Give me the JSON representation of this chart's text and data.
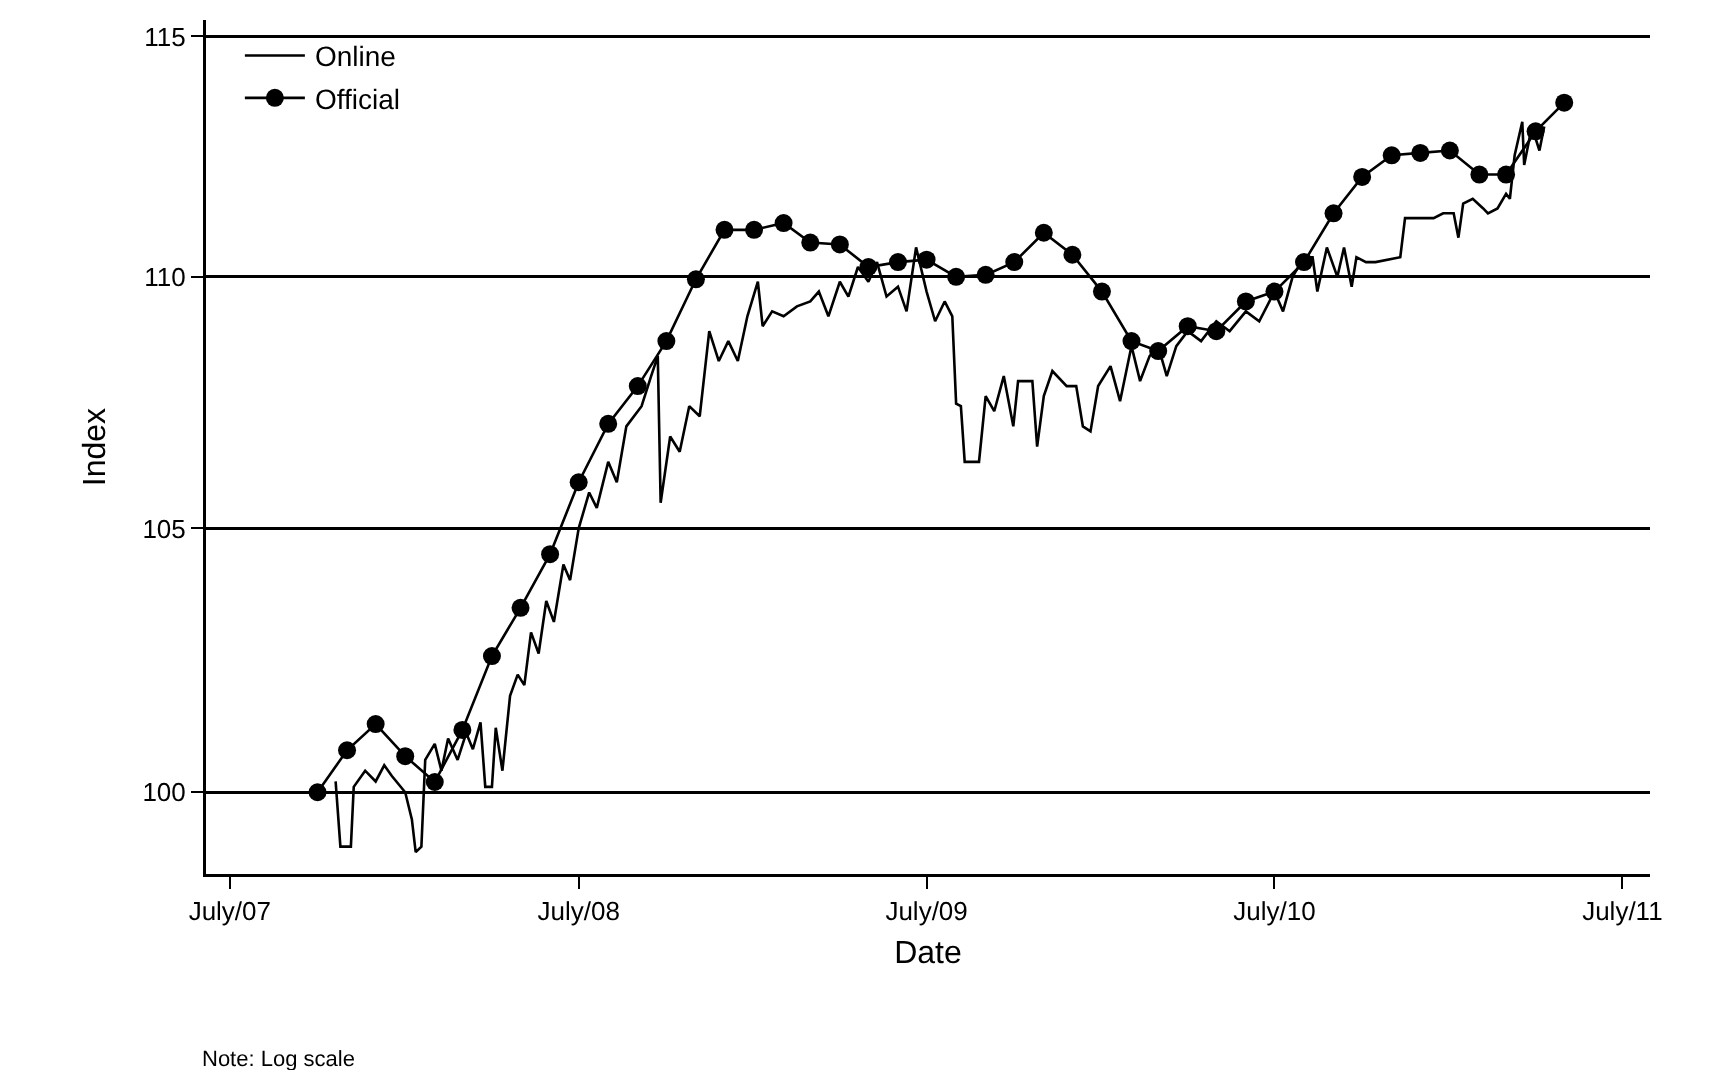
{
  "chart_data": {
    "type": "line",
    "xlabel": "Date",
    "ylabel": "Index",
    "log": true,
    "grid": "y",
    "legend": "top left",
    "annotations": [
      "Note: Log scale"
    ],
    "xlim": [
      "2007-06-06",
      "2011-07-30"
    ],
    "xticks": [
      {
        "value": "2007-07-01",
        "label": "July/07"
      },
      {
        "value": "2008-07-01",
        "label": "July/08"
      },
      {
        "value": "2009-07-01",
        "label": "July/09"
      },
      {
        "value": "2010-07-01",
        "label": "July/10"
      },
      {
        "value": "2011-07-01",
        "label": "July/11"
      }
    ],
    "ylim": [
      98.5,
      115.35
    ],
    "yticks": [
      100,
      105,
      110,
      115
    ],
    "series": [
      {
        "name": "Online",
        "color": "#000000",
        "marker": "none",
        "x": [
          "2007-10-20",
          "2007-10-25",
          "2007-11-05",
          "2007-11-08",
          "2007-11-20",
          "2007-12-01",
          "2007-12-10",
          "2007-12-18",
          "2008-01-01",
          "2008-01-08",
          "2008-01-12",
          "2008-01-18",
          "2008-01-22",
          "2008-02-01",
          "2008-02-08",
          "2008-02-15",
          "2008-02-25",
          "2008-03-05",
          "2008-03-12",
          "2008-03-20",
          "2008-03-25",
          "2008-04-01",
          "2008-04-05",
          "2008-04-12",
          "2008-04-20",
          "2008-04-28",
          "2008-05-05",
          "2008-05-12",
          "2008-05-20",
          "2008-05-28",
          "2008-06-05",
          "2008-06-15",
          "2008-06-22",
          "2008-07-01",
          "2008-07-12",
          "2008-07-20",
          "2008-08-01",
          "2008-08-10",
          "2008-08-20",
          "2008-09-05",
          "2008-09-15",
          "2008-09-22",
          "2008-09-25",
          "2008-10-05",
          "2008-10-15",
          "2008-10-25",
          "2008-11-05",
          "2008-11-15",
          "2008-11-25",
          "2008-12-05",
          "2008-12-15",
          "2008-12-25",
          "2009-01-05",
          "2009-01-10",
          "2009-01-20",
          "2009-02-01",
          "2009-02-15",
          "2009-03-01",
          "2009-03-10",
          "2009-03-20",
          "2009-04-01",
          "2009-04-10",
          "2009-04-20",
          "2009-05-01",
          "2009-05-10",
          "2009-05-20",
          "2009-06-01",
          "2009-06-10",
          "2009-06-20",
          "2009-07-01",
          "2009-07-10",
          "2009-07-20",
          "2009-07-28",
          "2009-08-01",
          "2009-08-06",
          "2009-08-10",
          "2009-08-25",
          "2009-09-01",
          "2009-09-10",
          "2009-09-20",
          "2009-09-30",
          "2009-10-05",
          "2009-10-20",
          "2009-10-25",
          "2009-11-01",
          "2009-11-10",
          "2009-11-25",
          "2009-12-05",
          "2009-12-12",
          "2009-12-20",
          "2009-12-28",
          "2010-01-10",
          "2010-01-20",
          "2010-02-01",
          "2010-02-10",
          "2010-02-20",
          "2010-03-01",
          "2010-03-10",
          "2010-03-20",
          "2010-04-01",
          "2010-04-15",
          "2010-05-01",
          "2010-05-15",
          "2010-06-01",
          "2010-06-15",
          "2010-07-01",
          "2010-07-10",
          "2010-07-20",
          "2010-08-01",
          "2010-08-10",
          "2010-08-15",
          "2010-08-25",
          "2010-09-05",
          "2010-09-12",
          "2010-09-20",
          "2010-09-25",
          "2010-10-05",
          "2010-10-15",
          "2010-11-10",
          "2010-11-15",
          "2010-12-15",
          "2010-12-25",
          "2011-01-05",
          "2011-01-10",
          "2011-01-15",
          "2011-01-25",
          "2011-02-05",
          "2011-02-10",
          "2011-02-20",
          "2011-03-01",
          "2011-03-05",
          "2011-03-10",
          "2011-03-18",
          "2011-03-20",
          "2011-03-28",
          "2011-04-05",
          "2011-04-10"
        ],
        "values": [
          100.2,
          99.0,
          99.0,
          100.1,
          100.4,
          100.2,
          100.5,
          100.3,
          100.0,
          99.5,
          98.9,
          99.0,
          100.6,
          100.9,
          100.4,
          101.0,
          100.6,
          101.1,
          100.8,
          101.3,
          100.1,
          100.1,
          101.2,
          100.4,
          101.8,
          102.2,
          102.0,
          103.0,
          102.6,
          103.6,
          103.2,
          104.3,
          104.0,
          105.0,
          105.7,
          105.4,
          106.3,
          105.9,
          107.0,
          107.4,
          108.0,
          108.4,
          105.5,
          106.8,
          106.5,
          107.4,
          107.2,
          108.9,
          108.3,
          108.7,
          108.3,
          109.2,
          109.9,
          109.0,
          109.3,
          109.2,
          109.4,
          109.5,
          109.7,
          109.2,
          109.9,
          109.6,
          110.2,
          109.9,
          110.3,
          109.6,
          109.8,
          109.3,
          110.6,
          109.7,
          109.1,
          109.5,
          109.2,
          107.45,
          107.4,
          106.3,
          106.3,
          107.6,
          107.3,
          108.0,
          107.0,
          107.9,
          107.9,
          106.6,
          107.6,
          108.1,
          107.8,
          107.8,
          107.0,
          106.9,
          107.8,
          108.2,
          107.5,
          108.6,
          107.9,
          108.4,
          108.6,
          108.0,
          108.6,
          108.9,
          108.7,
          109.1,
          108.9,
          109.3,
          109.1,
          109.7,
          109.3,
          110.0,
          110.4,
          110.4,
          109.7,
          110.6,
          110.0,
          110.6,
          109.8,
          110.4,
          110.3,
          110.3,
          110.4,
          111.2,
          111.2,
          111.3,
          111.3,
          110.8,
          111.5,
          111.6,
          111.4,
          111.3,
          111.4,
          111.7,
          111.6,
          112.5,
          113.2,
          112.3,
          113.1,
          112.6,
          113.1
        ]
      },
      {
        "name": "Official",
        "color": "#000000",
        "marker": "circle",
        "x": [
          "2007-10-01",
          "2007-11-01",
          "2007-12-01",
          "2008-01-01",
          "2008-02-01",
          "2008-03-01",
          "2008-04-01",
          "2008-05-01",
          "2008-06-01",
          "2008-07-01",
          "2008-08-01",
          "2008-09-01",
          "2008-10-01",
          "2008-11-01",
          "2008-12-01",
          "2009-01-01",
          "2009-02-01",
          "2009-03-01",
          "2009-04-01",
          "2009-05-01",
          "2009-06-01",
          "2009-07-01",
          "2009-08-01",
          "2009-09-01",
          "2009-10-01",
          "2009-11-01",
          "2009-12-01",
          "2010-01-01",
          "2010-02-01",
          "2010-03-01",
          "2010-04-01",
          "2010-05-01",
          "2010-06-01",
          "2010-07-01",
          "2010-08-01",
          "2010-09-01",
          "2010-10-01",
          "2010-11-01",
          "2010-12-01",
          "2011-01-01",
          "2011-02-01",
          "2011-03-01",
          "2011-04-01",
          "2011-05-01"
        ],
        "values": [
          100.0,
          100.78,
          101.27,
          100.67,
          100.19,
          101.16,
          102.55,
          103.47,
          104.5,
          105.9,
          107.05,
          107.8,
          108.7,
          109.95,
          110.96,
          110.96,
          111.1,
          110.7,
          110.66,
          110.2,
          110.3,
          110.35,
          110.0,
          110.04,
          110.3,
          110.9,
          110.45,
          109.7,
          108.7,
          108.5,
          109.0,
          108.9,
          109.5,
          109.7,
          110.3,
          111.3,
          112.05,
          112.5,
          112.55,
          112.6,
          112.1,
          112.1,
          113.0,
          113.6
        ]
      }
    ]
  }
}
